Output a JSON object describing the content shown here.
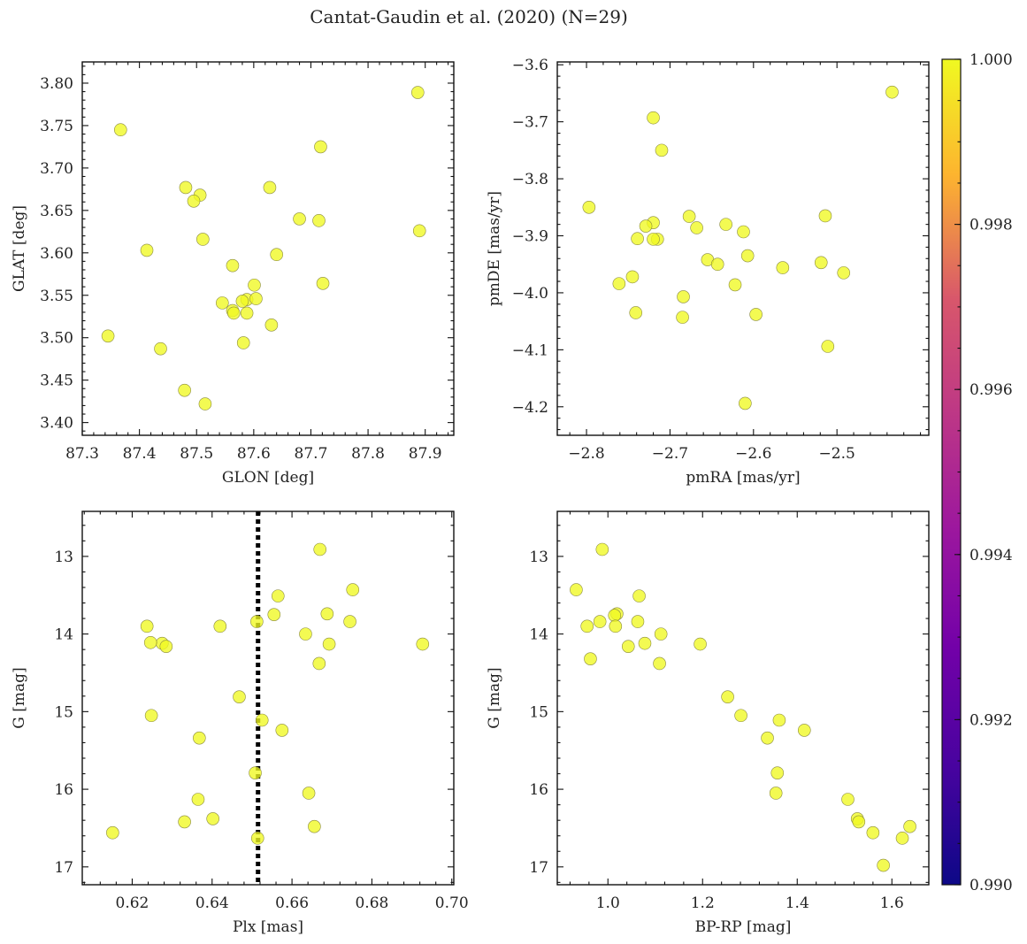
{
  "figure_title": "Cantat-Gaudin et al. (2020) (N=29)",
  "colors": {
    "point": "#f0f921",
    "edge": "#8a8a40",
    "plx_line": "#000000"
  },
  "chart_data": [
    {
      "type": "scatter",
      "name": "glon-glat",
      "xlabel": "GLON [deg]",
      "ylabel": "GLAT [deg]",
      "xlim": [
        87.3,
        87.95
      ],
      "ylim": [
        3.385,
        3.825
      ],
      "xticks": [
        87.3,
        87.4,
        87.5,
        87.6,
        87.7,
        87.8,
        87.9
      ],
      "xtick_labels": [
        "87.3",
        "87.4",
        "87.5",
        "87.6",
        "87.7",
        "87.8",
        "87.9"
      ],
      "yticks": [
        3.4,
        3.45,
        3.5,
        3.55,
        3.6,
        3.65,
        3.7,
        3.75,
        3.8
      ],
      "ytick_labels": [
        "3.40",
        "3.45",
        "3.50",
        "3.55",
        "3.60",
        "3.65",
        "3.70",
        "3.75",
        "3.80"
      ],
      "x": [
        87.367,
        87.887,
        87.717,
        87.481,
        87.506,
        87.495,
        87.628,
        87.89,
        87.68,
        87.714,
        87.413,
        87.511,
        87.64,
        87.563,
        87.601,
        87.721,
        87.545,
        87.588,
        87.58,
        87.563,
        87.565,
        87.588,
        87.631,
        87.345,
        87.582,
        87.437,
        87.479,
        87.515,
        87.604
      ],
      "y": [
        3.745,
        3.789,
        3.725,
        3.677,
        3.668,
        3.661,
        3.677,
        3.626,
        3.64,
        3.638,
        3.603,
        3.616,
        3.598,
        3.585,
        3.562,
        3.564,
        3.541,
        3.545,
        3.543,
        3.532,
        3.529,
        3.529,
        3.515,
        3.502,
        3.494,
        3.487,
        3.438,
        3.422,
        3.546
      ]
    },
    {
      "type": "scatter",
      "name": "pmra-pmde",
      "xlabel": "pmRA [mas/yr]",
      "ylabel": "pmDE [mas/yr]",
      "xlim": [
        -2.835,
        -2.39
      ],
      "ylim": [
        -4.25,
        -3.595
      ],
      "xticks": [
        -2.8,
        -2.7,
        -2.6,
        -2.5
      ],
      "xtick_labels": [
        "−2.8",
        "−2.7",
        "−2.6",
        "−2.5"
      ],
      "yticks": [
        -4.2,
        -4.1,
        -4.0,
        -3.9,
        -3.8,
        -3.7,
        -3.6
      ],
      "ytick_labels": [
        "−4.2",
        "−4.1",
        "−4.0",
        "−3.9",
        "−3.8",
        "−3.7",
        "−3.6"
      ],
      "x": [
        -2.434,
        -2.72,
        -2.71,
        -2.797,
        -2.677,
        -2.668,
        -2.72,
        -2.729,
        -2.633,
        -2.612,
        -2.514,
        -2.715,
        -2.739,
        -2.72,
        -2.655,
        -2.643,
        -2.607,
        -2.565,
        -2.519,
        -2.492,
        -2.745,
        -2.761,
        -2.622,
        -2.684,
        -2.741,
        -2.685,
        -2.597,
        -2.511,
        -2.61
      ],
      "y": [
        -3.648,
        -3.693,
        -3.75,
        -3.85,
        -3.866,
        -3.886,
        -3.877,
        -3.883,
        -3.88,
        -3.893,
        -3.865,
        -3.906,
        -3.905,
        -3.906,
        -3.942,
        -3.95,
        -3.935,
        -3.956,
        -3.947,
        -3.965,
        -3.972,
        -3.984,
        -3.986,
        -4.007,
        -4.035,
        -4.043,
        -4.038,
        -4.094,
        -4.194
      ]
    },
    {
      "type": "scatter",
      "name": "plx-g",
      "xlabel": "Plx [mas]",
      "ylabel": "G [mag]",
      "xlim": [
        0.6075,
        0.7005
      ],
      "ylim": [
        12.42,
        17.23
      ],
      "y_inverted": true,
      "vline": 0.6515,
      "xticks": [
        0.62,
        0.64,
        0.66,
        0.68,
        0.7
      ],
      "xtick_labels": [
        "0.62",
        "0.64",
        "0.66",
        "0.68",
        "0.70"
      ],
      "yticks": [
        13,
        14,
        15,
        16,
        17
      ],
      "ytick_labels": [
        "13",
        "14",
        "15",
        "16",
        "17"
      ],
      "x": [
        0.667,
        0.6752,
        0.6565,
        0.6688,
        0.6555,
        0.6745,
        0.6512,
        0.6237,
        0.642,
        0.6634,
        0.6693,
        0.6275,
        0.6246,
        0.6285,
        0.6927,
        0.6668,
        0.6468,
        0.6525,
        0.6248,
        0.6575,
        0.6368,
        0.6508,
        0.6642,
        0.6365,
        0.6656,
        0.6402,
        0.6331,
        0.6151,
        0.6514
      ],
      "y": [
        12.91,
        13.43,
        13.51,
        13.74,
        13.75,
        13.84,
        13.84,
        13.9,
        13.9,
        14.0,
        14.13,
        14.12,
        14.11,
        14.16,
        14.13,
        14.38,
        14.81,
        15.11,
        15.05,
        15.24,
        15.34,
        15.79,
        16.05,
        16.13,
        16.48,
        16.38,
        16.42,
        16.56,
        16.63
      ]
    },
    {
      "type": "scatter",
      "name": "bprp-g",
      "xlabel": "BP-RP [mag]",
      "ylabel": "G [mag]",
      "xlim": [
        0.893,
        1.678
      ],
      "ylim": [
        12.42,
        17.23
      ],
      "y_inverted": true,
      "xticks": [
        1.0,
        1.2,
        1.4,
        1.6
      ],
      "xtick_labels": [
        "1.0",
        "1.2",
        "1.4",
        "1.6"
      ],
      "yticks": [
        13,
        14,
        15,
        16,
        17
      ],
      "ytick_labels": [
        "13",
        "14",
        "15",
        "16",
        "17"
      ],
      "x": [
        0.988,
        0.933,
        1.066,
        1.019,
        0.983,
        1.014,
        1.063,
        0.956,
        1.016,
        1.112,
        1.043,
        1.078,
        1.195,
        0.963,
        1.109,
        1.253,
        1.281,
        1.362,
        1.337,
        1.415,
        1.358,
        1.355,
        1.507,
        1.527,
        1.53,
        1.56,
        1.638,
        1.622,
        1.582
      ],
      "y": [
        12.91,
        13.43,
        13.51,
        13.74,
        13.84,
        13.76,
        13.84,
        13.9,
        13.9,
        14.0,
        14.16,
        14.12,
        14.13,
        14.32,
        14.38,
        14.81,
        15.05,
        15.11,
        15.34,
        15.24,
        15.79,
        16.05,
        16.13,
        16.38,
        16.42,
        16.56,
        16.48,
        16.63,
        16.98
      ]
    },
    {
      "type": "colorbar",
      "name": "membership-colorbar",
      "cmap": "plasma",
      "range": [
        0.99,
        1.0
      ],
      "ticks": [
        0.99,
        0.992,
        0.994,
        0.996,
        0.998,
        1.0
      ],
      "tick_labels": [
        "0.990",
        "0.992",
        "0.994",
        "0.996",
        "0.998",
        "1.000"
      ]
    }
  ]
}
